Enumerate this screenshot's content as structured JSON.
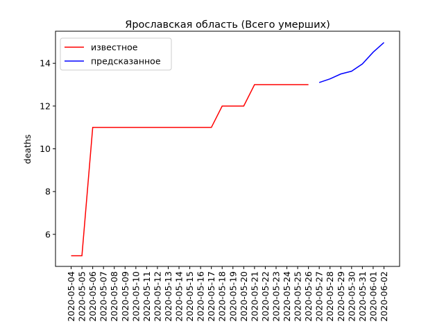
{
  "chart_data": {
    "type": "line",
    "title": "Ярославская область (Всего умерших)",
    "ylabel": "deaths",
    "categories": [
      "2020-05-04",
      "2020-05-05",
      "2020-05-06",
      "2020-05-07",
      "2020-05-08",
      "2020-05-09",
      "2020-05-10",
      "2020-05-11",
      "2020-05-12",
      "2020-05-13",
      "2020-05-14",
      "2020-05-15",
      "2020-05-16",
      "2020-05-17",
      "2020-05-18",
      "2020-05-19",
      "2020-05-20",
      "2020-05-21",
      "2020-05-22",
      "2020-05-23",
      "2020-05-24",
      "2020-05-25",
      "2020-05-26",
      "2020-05-27",
      "2020-05-28",
      "2020-05-29",
      "2020-05-30",
      "2020-05-31",
      "2020-06-01",
      "2020-06-02"
    ],
    "series": [
      {
        "name": "известное",
        "color": "#ff0000",
        "values": [
          5,
          5,
          11,
          11,
          11,
          11,
          11,
          11,
          11,
          11,
          11,
          11,
          11,
          11,
          12,
          12,
          12,
          13,
          13,
          13,
          13,
          13,
          13,
          null,
          null,
          null,
          null,
          null,
          null,
          null
        ]
      },
      {
        "name": "предсказанное",
        "color": "#0000ff",
        "values": [
          null,
          null,
          null,
          null,
          null,
          null,
          null,
          null,
          null,
          null,
          null,
          null,
          null,
          null,
          null,
          null,
          null,
          null,
          null,
          null,
          null,
          null,
          null,
          13.1,
          13.27,
          13.5,
          13.63,
          13.97,
          14.52,
          14.97
        ]
      }
    ],
    "ylim": [
      4.5,
      15.5
    ],
    "yticks": [
      6,
      8,
      10,
      12,
      14
    ],
    "legend": "upper left"
  }
}
